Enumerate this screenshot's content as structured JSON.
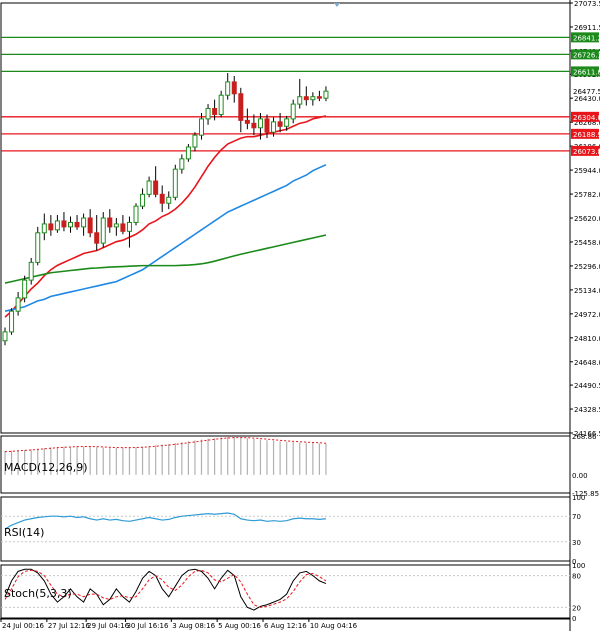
{
  "colors": {
    "background": "#ffffff",
    "grid": "#000000",
    "bull": "#1e8c1e",
    "bear": "#c81e1e",
    "sma_fast": "#e8151b",
    "sma_mid": "#1e88e5",
    "sma_slow": "#1b8a1b",
    "resistance": "#1b8a1b",
    "support": "#e8151b",
    "current": "#000000",
    "rsi": "#2e9bd6",
    "stoch_main": "#000000",
    "stoch_signal": "#e8151b"
  },
  "chart_data": [
    {
      "type": "candlestick",
      "pane": "main",
      "ylim": [
        24166.5,
        27073.5
      ],
      "y_ticks": [
        "27073.5",
        "26911.5",
        "26749.5",
        "26592.0",
        "26430.0",
        "26268.0",
        "26106.0",
        "25944.0",
        "25782.0",
        "25620.0",
        "25458.0",
        "25296.0",
        "25134.0",
        "24972.0",
        "24810.0",
        "24648.0",
        "24490.5",
        "24328.5",
        "24166.5"
      ],
      "x_labels": [
        "24 Jul 00:16",
        "27 Jul 12:16",
        "29 Jul 04:16",
        "30 Jul 16:16",
        "3 Aug 08:16",
        "5 Aug 00:16",
        "6 Aug 12:16",
        "10 Aug 04:16"
      ],
      "candles": [
        {
          "o": 24790,
          "h": 24880,
          "l": 24760,
          "c": 24850
        },
        {
          "o": 24850,
          "h": 25010,
          "l": 24830,
          "c": 24990
        },
        {
          "o": 24990,
          "h": 25120,
          "l": 24960,
          "c": 25080
        },
        {
          "o": 25080,
          "h": 25230,
          "l": 25050,
          "c": 25200
        },
        {
          "o": 25200,
          "h": 25350,
          "l": 25170,
          "c": 25320
        },
        {
          "o": 25320,
          "h": 25560,
          "l": 25300,
          "c": 25520
        },
        {
          "o": 25520,
          "h": 25650,
          "l": 25470,
          "c": 25580
        },
        {
          "o": 25580,
          "h": 25640,
          "l": 25500,
          "c": 25540
        },
        {
          "o": 25540,
          "h": 25640,
          "l": 25520,
          "c": 25600
        },
        {
          "o": 25600,
          "h": 25660,
          "l": 25530,
          "c": 25560
        },
        {
          "o": 25560,
          "h": 25630,
          "l": 25520,
          "c": 25590
        },
        {
          "o": 25590,
          "h": 25640,
          "l": 25540,
          "c": 25560
        },
        {
          "o": 25560,
          "h": 25650,
          "l": 25500,
          "c": 25620
        },
        {
          "o": 25620,
          "h": 25680,
          "l": 25490,
          "c": 25520
        },
        {
          "o": 25520,
          "h": 25640,
          "l": 25400,
          "c": 25450
        },
        {
          "o": 25450,
          "h": 25660,
          "l": 25420,
          "c": 25620
        },
        {
          "o": 25620,
          "h": 25680,
          "l": 25520,
          "c": 25560
        },
        {
          "o": 25560,
          "h": 25620,
          "l": 25500,
          "c": 25580
        },
        {
          "o": 25580,
          "h": 25640,
          "l": 25510,
          "c": 25530
        },
        {
          "o": 25530,
          "h": 25630,
          "l": 25420,
          "c": 25590
        },
        {
          "o": 25590,
          "h": 25720,
          "l": 25570,
          "c": 25700
        },
        {
          "o": 25700,
          "h": 25820,
          "l": 25680,
          "c": 25780
        },
        {
          "o": 25780,
          "h": 25900,
          "l": 25760,
          "c": 25870
        },
        {
          "o": 25870,
          "h": 25970,
          "l": 25760,
          "c": 25780
        },
        {
          "o": 25780,
          "h": 25840,
          "l": 25660,
          "c": 25720
        },
        {
          "o": 25720,
          "h": 25800,
          "l": 25680,
          "c": 25760
        },
        {
          "o": 25760,
          "h": 25980,
          "l": 25740,
          "c": 25950
        },
        {
          "o": 25950,
          "h": 26050,
          "l": 25920,
          "c": 26020
        },
        {
          "o": 26020,
          "h": 26120,
          "l": 26000,
          "c": 26100
        },
        {
          "o": 26100,
          "h": 26200,
          "l": 26070,
          "c": 26180
        },
        {
          "o": 26180,
          "h": 26330,
          "l": 26150,
          "c": 26290
        },
        {
          "o": 26290,
          "h": 26390,
          "l": 26250,
          "c": 26360
        },
        {
          "o": 26360,
          "h": 26420,
          "l": 26280,
          "c": 26320
        },
        {
          "o": 26320,
          "h": 26480,
          "l": 26300,
          "c": 26450
        },
        {
          "o": 26450,
          "h": 26600,
          "l": 26420,
          "c": 26540
        },
        {
          "o": 26540,
          "h": 26580,
          "l": 26400,
          "c": 26460
        },
        {
          "o": 26460,
          "h": 26500,
          "l": 26200,
          "c": 26280
        },
        {
          "o": 26280,
          "h": 26360,
          "l": 26220,
          "c": 26260
        },
        {
          "o": 26260,
          "h": 26320,
          "l": 26180,
          "c": 26230
        },
        {
          "o": 26230,
          "h": 26330,
          "l": 26150,
          "c": 26290
        },
        {
          "o": 26290,
          "h": 26320,
          "l": 26160,
          "c": 26200
        },
        {
          "o": 26200,
          "h": 26300,
          "l": 26170,
          "c": 26270
        },
        {
          "o": 26270,
          "h": 26330,
          "l": 26200,
          "c": 26240
        },
        {
          "o": 26240,
          "h": 26310,
          "l": 26210,
          "c": 26290
        },
        {
          "o": 26290,
          "h": 26420,
          "l": 26260,
          "c": 26390
        },
        {
          "o": 26390,
          "h": 26560,
          "l": 26360,
          "c": 26440
        },
        {
          "o": 26440,
          "h": 26510,
          "l": 26380,
          "c": 26420
        },
        {
          "o": 26420,
          "h": 26470,
          "l": 26380,
          "c": 26440
        },
        {
          "o": 26440,
          "h": 26480,
          "l": 26410,
          "c": 26430
        },
        {
          "o": 26430,
          "h": 26510,
          "l": 26410,
          "c": 26477.5
        }
      ],
      "moving_averages": [
        {
          "color_key": "sma_fast",
          "values": [
            24950,
            24990,
            25040,
            25090,
            25140,
            25180,
            25230,
            25270,
            25300,
            25320,
            25340,
            25360,
            25380,
            25390,
            25400,
            25420,
            25440,
            25460,
            25470,
            25490,
            25510,
            25540,
            25580,
            25600,
            25630,
            25650,
            25680,
            25720,
            25770,
            25830,
            25900,
            25970,
            26030,
            26080,
            26120,
            26140,
            26160,
            26170,
            26170,
            26180,
            26190,
            26200,
            26210,
            26220,
            26240,
            26260,
            26270,
            26290,
            26300,
            26310
          ]
        },
        {
          "color_key": "sma_mid",
          "values": [
            24990,
            25000,
            25010,
            25020,
            25040,
            25060,
            25070,
            25090,
            25100,
            25110,
            25120,
            25130,
            25140,
            25150,
            25160,
            25170,
            25180,
            25190,
            25210,
            25230,
            25250,
            25270,
            25300,
            25330,
            25360,
            25390,
            25420,
            25450,
            25480,
            25510,
            25540,
            25570,
            25600,
            25630,
            25660,
            25680,
            25700,
            25720,
            25740,
            25760,
            25780,
            25800,
            25820,
            25840,
            25870,
            25890,
            25910,
            25940,
            25960,
            25980
          ]
        },
        {
          "color_key": "sma_slow",
          "values": [
            25180,
            25190,
            25200,
            25210,
            25220,
            25230,
            25240,
            25250,
            25255,
            25260,
            25265,
            25270,
            25275,
            25280,
            25282,
            25285,
            25288,
            25290,
            25292,
            25294,
            25296,
            25298,
            25298,
            25298,
            25298,
            25298,
            25298,
            25300,
            25302,
            25305,
            25310,
            25318,
            25328,
            25340,
            25352,
            25364,
            25375,
            25385,
            25395,
            25405,
            25415,
            25425,
            25435,
            25445,
            25455,
            25465,
            25475,
            25485,
            25495,
            25505
          ]
        }
      ],
      "levels": [
        {
          "value": 26841.2,
          "label": "26841.2",
          "kind": "resistance"
        },
        {
          "value": 26726.1,
          "label": "26726.1",
          "kind": "resistance"
        },
        {
          "value": 26611.0,
          "label": "26611.0",
          "kind": "resistance"
        },
        {
          "value": 26477.5,
          "label": "26477.5",
          "kind": "current"
        },
        {
          "value": 26304.0,
          "label": "26304.0",
          "kind": "support"
        },
        {
          "value": 26188.9,
          "label": "26188.9",
          "kind": "support"
        },
        {
          "value": 26073.8,
          "label": "26073.8",
          "kind": "support"
        }
      ]
    },
    {
      "type": "histogram",
      "pane": "macd",
      "label": "MACD(12,26,9)",
      "ylim": [
        -125.85,
        268.86
      ],
      "y_ticks": [
        "268.86",
        "0.00",
        "-125.85"
      ],
      "histogram": [
        165,
        168,
        170,
        172,
        176,
        180,
        185,
        190,
        192,
        195,
        196,
        196,
        195,
        194,
        192,
        190,
        188,
        186,
        186,
        187,
        190,
        195,
        200,
        205,
        210,
        214,
        220,
        226,
        232,
        238,
        244,
        250,
        254,
        258,
        262,
        262,
        258,
        254,
        248,
        244,
        240,
        236,
        232,
        228,
        226,
        224,
        222,
        220,
        218,
        216
      ],
      "signal": [
        160,
        163,
        166,
        169,
        172,
        176,
        180,
        184,
        188,
        191,
        193,
        195,
        196,
        196,
        195,
        193,
        191,
        189,
        188,
        188,
        189,
        191,
        194,
        198,
        202,
        206,
        211,
        216,
        222,
        228,
        234,
        240,
        246,
        251,
        255,
        258,
        258,
        257,
        254,
        251,
        247,
        243,
        239,
        235,
        232,
        229,
        226,
        224,
        222,
        219
      ]
    },
    {
      "type": "line",
      "pane": "rsi",
      "label": "RSI(14)",
      "ylim": [
        0,
        100
      ],
      "y_ticks": [
        "100",
        "70",
        "30",
        "0"
      ],
      "values": [
        50,
        56,
        60,
        64,
        66,
        68,
        69,
        70,
        70,
        69,
        70,
        68,
        69,
        66,
        64,
        66,
        64,
        65,
        63,
        62,
        64,
        66,
        68,
        66,
        64,
        65,
        68,
        70,
        71,
        72,
        73,
        74,
        73,
        74,
        75,
        73,
        66,
        64,
        63,
        64,
        62,
        63,
        62,
        63,
        66,
        67,
        66,
        66,
        65,
        66
      ]
    },
    {
      "type": "line",
      "pane": "stoch",
      "label": "Stoch(5,3,3)",
      "ylim": [
        0,
        100
      ],
      "y_ticks": [
        "100",
        "80",
        "20",
        "0"
      ],
      "series": [
        {
          "color_key": "stoch_main",
          "values": [
            40,
            70,
            88,
            92,
            92,
            85,
            70,
            45,
            30,
            40,
            55,
            40,
            30,
            55,
            45,
            25,
            35,
            55,
            40,
            30,
            50,
            75,
            88,
            80,
            55,
            40,
            60,
            80,
            90,
            92,
            88,
            75,
            55,
            75,
            90,
            80,
            40,
            20,
            15,
            22,
            25,
            30,
            35,
            45,
            70,
            85,
            88,
            80,
            70,
            65
          ]
        },
        {
          "color_key": "stoch_signal",
          "values": [
            35,
            55,
            78,
            88,
            90,
            88,
            80,
            62,
            45,
            40,
            45,
            45,
            40,
            45,
            45,
            38,
            35,
            40,
            42,
            38,
            40,
            55,
            72,
            80,
            72,
            58,
            52,
            62,
            78,
            88,
            90,
            85,
            72,
            68,
            75,
            82,
            68,
            45,
            25,
            20,
            22,
            26,
            30,
            36,
            50,
            68,
            82,
            84,
            78,
            70
          ]
        }
      ]
    }
  ]
}
